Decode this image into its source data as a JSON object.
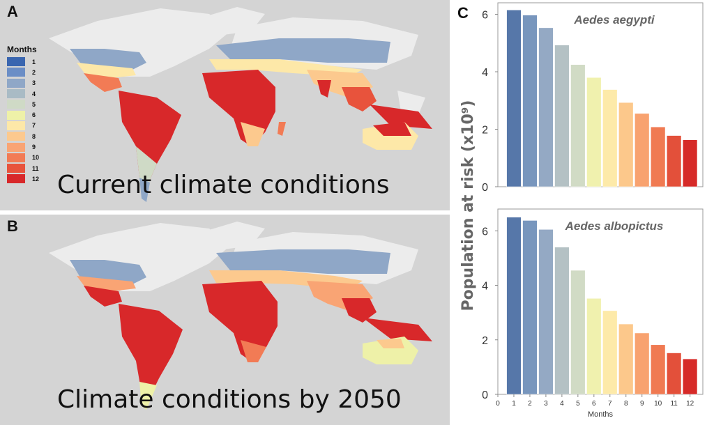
{
  "panel_a": {
    "letter": "A",
    "caption": "Current climate conditions"
  },
  "panel_b": {
    "letter": "B",
    "caption": "Climate conditions by 2050"
  },
  "panel_c": {
    "letter": "C"
  },
  "legend": {
    "title": "Months",
    "items": [
      {
        "label": "1",
        "color": "#3a66b0"
      },
      {
        "label": "2",
        "color": "#6b8ec6"
      },
      {
        "label": "3",
        "color": "#8fa7c7"
      },
      {
        "label": "4",
        "color": "#a9bbc5"
      },
      {
        "label": "5",
        "color": "#cfdac6"
      },
      {
        "label": "6",
        "color": "#eef1a8"
      },
      {
        "label": "7",
        "color": "#fde8a8"
      },
      {
        "label": "8",
        "color": "#fcc98e"
      },
      {
        "label": "9",
        "color": "#f9a474"
      },
      {
        "label": "10",
        "color": "#f27b55"
      },
      {
        "label": "11",
        "color": "#e8533c"
      },
      {
        "label": "12",
        "color": "#d8282a"
      }
    ]
  },
  "chart_data": [
    {
      "type": "bar",
      "title": "Aedes aegypti",
      "categories": [
        "1",
        "2",
        "3",
        "4",
        "5",
        "6",
        "7",
        "8",
        "9",
        "10",
        "11",
        "12"
      ],
      "values": [
        6.15,
        5.97,
        5.53,
        4.93,
        4.25,
        3.8,
        3.38,
        2.93,
        2.55,
        2.08,
        1.78,
        1.63
      ],
      "ylim": [
        0,
        6.4
      ],
      "yticks": [
        "0",
        "2",
        "4",
        "6"
      ]
    },
    {
      "type": "bar",
      "title": "Aedes albopictus",
      "categories": [
        "1",
        "2",
        "3",
        "4",
        "5",
        "6",
        "7",
        "8",
        "9",
        "10",
        "11",
        "12"
      ],
      "values": [
        6.5,
        6.38,
        6.05,
        5.4,
        4.55,
        3.52,
        3.07,
        2.58,
        2.25,
        1.82,
        1.52,
        1.3
      ],
      "ylim": [
        0,
        6.8
      ],
      "yticks": [
        "0",
        "2",
        "4",
        "6"
      ],
      "xticks": [
        "0",
        "1",
        "2",
        "3",
        "4",
        "5",
        "6",
        "7",
        "8",
        "9",
        "10",
        "11",
        "12"
      ],
      "xlabel": "Months"
    }
  ],
  "shared_ylabel": "Population at risk (x10⁹)",
  "bar_colors": [
    "#5677a9",
    "#7896bd",
    "#94a9c4",
    "#b4c1c4",
    "#d1dbc5",
    "#f0f1ae",
    "#fdeaa9",
    "#fcc88b",
    "#f8a26f",
    "#f07a52",
    "#e3503a",
    "#d62a28"
  ]
}
